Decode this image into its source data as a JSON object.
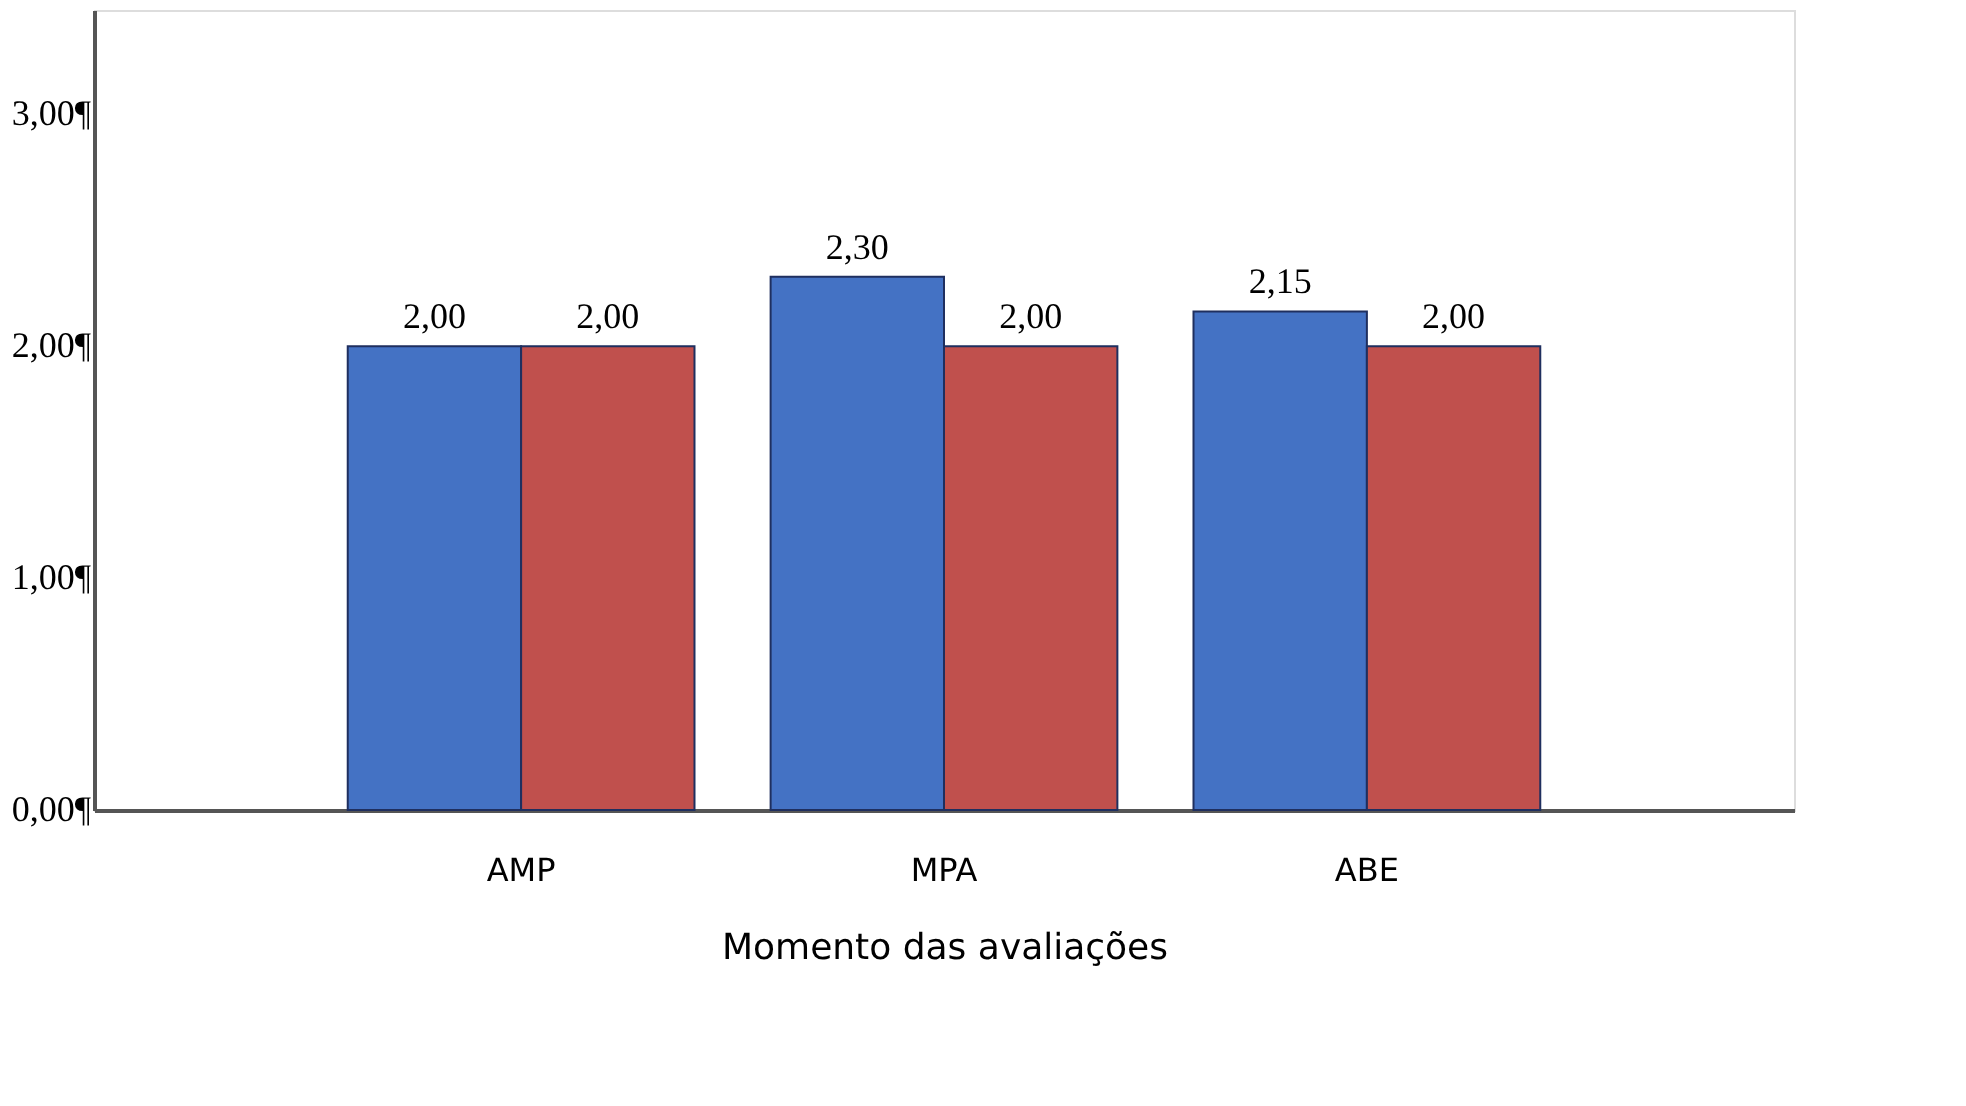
{
  "chart_data": {
    "type": "bar",
    "xlabel": "Momento das avaliações",
    "categories": [
      "AMP",
      "MPA",
      "ABE"
    ],
    "series": [
      {
        "color": "#4472c4",
        "values": [
          2.0,
          2.3,
          2.15
        ],
        "value_labels": [
          "2,00",
          "2,30",
          "2,15"
        ]
      },
      {
        "color": "#c0504d",
        "values": [
          2.0,
          2.0,
          2.0
        ],
        "value_labels": [
          "2,00",
          "2,00",
          "2,00"
        ]
      }
    ],
    "ylim": [
      0,
      3.45
    ],
    "yticks": [
      {
        "value": 0,
        "label": "0,00¶"
      },
      {
        "value": 1,
        "label": "1,00¶"
      },
      {
        "value": 2,
        "label": "2,00¶"
      },
      {
        "value": 3,
        "label": "3,00¶"
      }
    ],
    "grid": false
  }
}
